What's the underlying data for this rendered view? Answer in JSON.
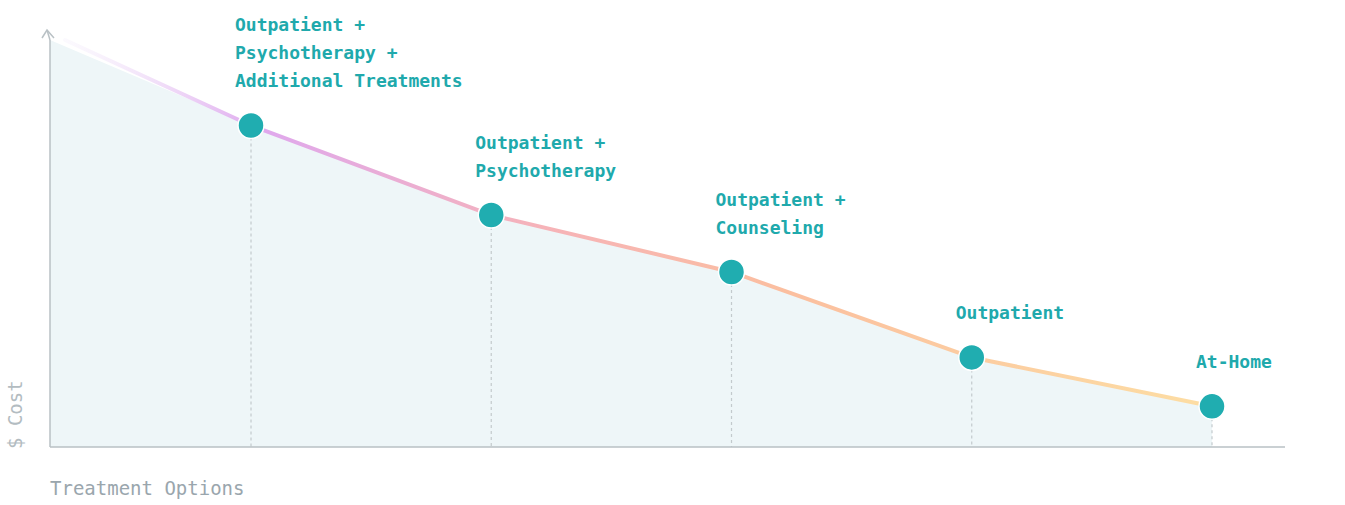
{
  "chart_data": {
    "type": "line",
    "x_label": "Treatment Options",
    "y_label": "$ Cost",
    "categories": [
      "Outpatient + Psychotherapy + Additional Treatments",
      "Outpatient + Psychotherapy",
      "Outpatient + Counseling",
      "Outpatient",
      "At-Home"
    ],
    "values": [
      79,
      57,
      43,
      22,
      10
    ],
    "ylim": [
      0,
      100
    ],
    "tick_labels": false,
    "grid": false,
    "color": "#20adb0",
    "marker": "circle"
  }
}
